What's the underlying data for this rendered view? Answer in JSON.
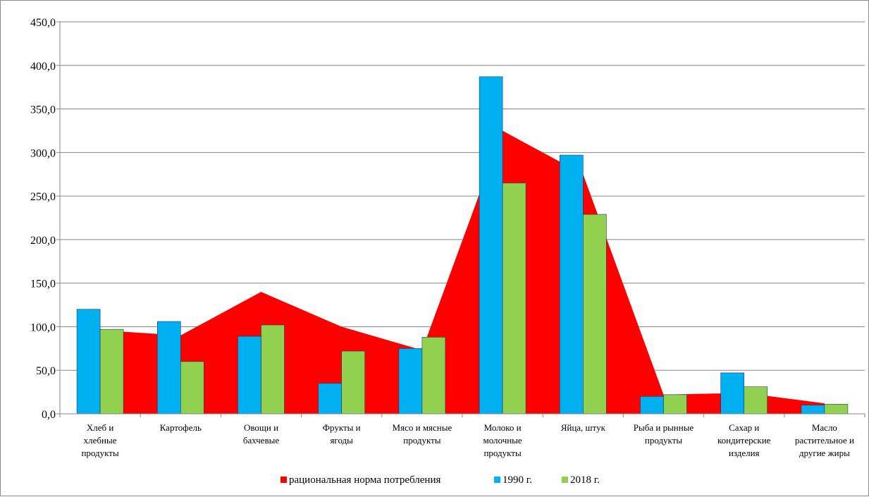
{
  "chart_data": {
    "type": "bar",
    "title": "",
    "xlabel": "",
    "ylabel": "",
    "ylim": [
      0,
      450
    ],
    "yticks": [
      "0,0",
      "50,0",
      "100,0",
      "150,0",
      "200,0",
      "250,0",
      "300,0",
      "350,0",
      "400,0",
      "450,0"
    ],
    "grid": true,
    "legend_position": "bottom",
    "categories": [
      [
        "Хлеб и",
        "хлебные",
        "продукты"
      ],
      [
        "Картофель"
      ],
      [
        "Овощи и",
        "бахчевые"
      ],
      [
        "Фрукты и",
        "ягоды"
      ],
      [
        "Мясо и мясные",
        "продукты"
      ],
      [
        "Молоко и",
        "молочные",
        "продукты"
      ],
      [
        "Яйца, штук"
      ],
      [
        "Рыба и рынные",
        "продукты"
      ],
      [
        "Сахар и",
        "кондитерские",
        "изделия"
      ],
      [
        "Масло",
        "растительное и",
        "другие жиры"
      ]
    ],
    "series": [
      {
        "name": "рациональная норма потребления",
        "type": "area",
        "color": "#ff0000",
        "values": [
          96,
          90,
          140,
          100,
          73,
          325,
          275,
          22,
          24,
          12
        ]
      },
      {
        "name": "1990 г.",
        "type": "bar",
        "color": "#00b0f0",
        "values": [
          120,
          106,
          89,
          35,
          75,
          387,
          297,
          20,
          47,
          10
        ]
      },
      {
        "name": "2018 г.",
        "type": "bar",
        "color": "#92d050",
        "values": [
          97,
          60,
          102,
          72,
          88,
          265,
          229,
          22,
          31,
          11
        ]
      }
    ]
  }
}
